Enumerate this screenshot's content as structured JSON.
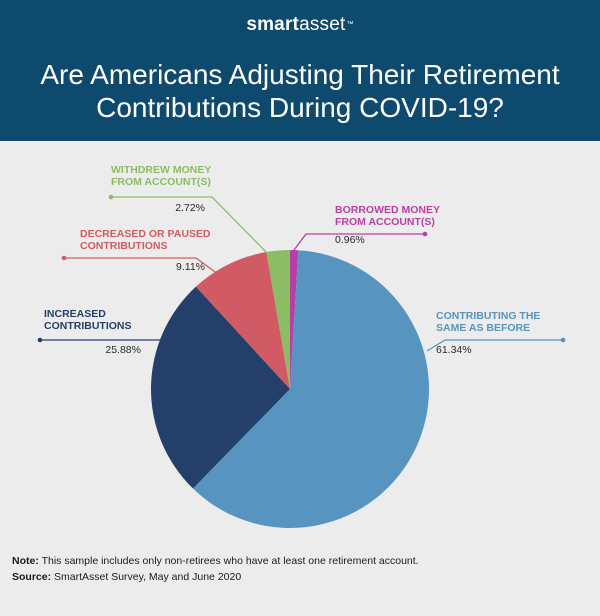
{
  "header": {
    "brand_bold": "smart",
    "brand_light": "asset",
    "brand_tm": "™",
    "title_line1": "Are Americans Adjusting Their Retirement",
    "title_line2": "Contributions During COVID-19?"
  },
  "colors": {
    "header_bg": "#0e4a6e",
    "background": "#ececec"
  },
  "chart_data": {
    "type": "pie",
    "title": "Are Americans Adjusting Their Retirement Contributions During COVID-19?",
    "unit": "%",
    "slices": [
      {
        "key": "borrowed",
        "label_lines": [
          "BORROWED MONEY",
          "FROM ACCOUNT(S)"
        ],
        "value": 0.96,
        "value_label": "0.96%",
        "color": "#b83fa6"
      },
      {
        "key": "same",
        "label_lines": [
          "CONTRIBUTING THE",
          "SAME AS BEFORE"
        ],
        "value": 61.34,
        "value_label": "61.34%",
        "color": "#5894c0"
      },
      {
        "key": "increased",
        "label_lines": [
          "INCREASED",
          "CONTRIBUTIONS"
        ],
        "value": 25.88,
        "value_label": "25.88%",
        "color": "#253f6b"
      },
      {
        "key": "decreased",
        "label_lines": [
          "DECREASED OR PAUSED",
          "CONTRIBUTIONS"
        ],
        "value": 9.11,
        "value_label": "9.11%",
        "color": "#d15b64"
      },
      {
        "key": "withdrew",
        "label_lines": [
          "WITHDREW MONEY",
          "FROM ACCOUNT(S)"
        ],
        "value": 2.72,
        "value_label": "2.72%",
        "color": "#8cbd65"
      }
    ]
  },
  "footer": {
    "note_label": "Note:",
    "note_text": " This sample includes only non-retirees who have at least one retirement account.",
    "source_label": "Source:",
    "source_text": " SmartAsset Survey, May and June 2020"
  }
}
